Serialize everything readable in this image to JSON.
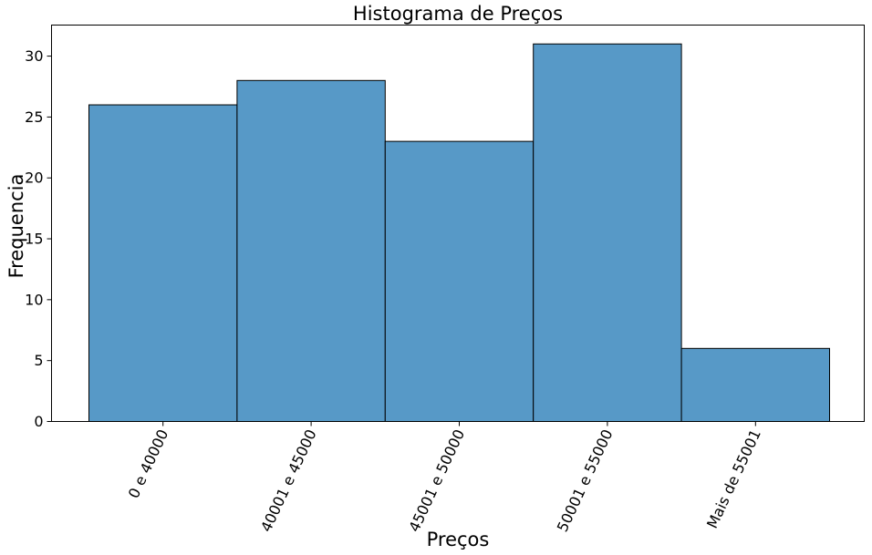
{
  "chart_data": {
    "type": "bar",
    "title": "Histograma de Preços",
    "xlabel": "Preços",
    "ylabel": "Frequencia",
    "categories": [
      "0 e 40000",
      "40001 e 45000",
      "45001 e 50000",
      "50001 e 55000",
      "Mais de 55001"
    ],
    "values": [
      26,
      28,
      23,
      31,
      6
    ],
    "ylim": [
      0,
      32.55
    ],
    "yticks": [
      0,
      5,
      10,
      15,
      20,
      25,
      30
    ],
    "bar_color": "#5799c7",
    "edge_color": "#000000",
    "grid": false,
    "xtick_rotation_deg": 65
  }
}
